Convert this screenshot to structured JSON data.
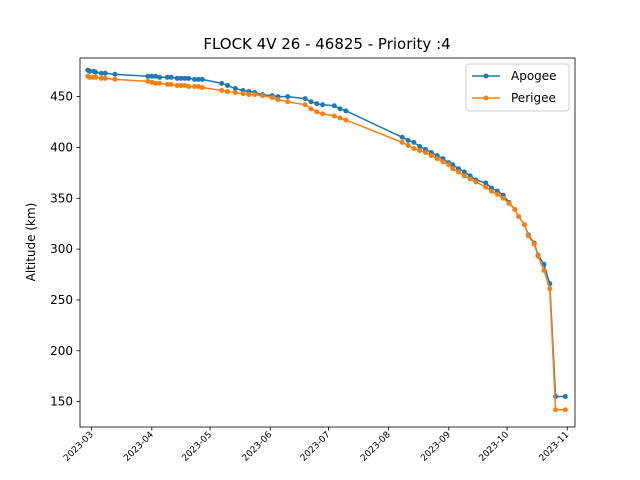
{
  "chart_data": {
    "type": "line",
    "title": "FLOCK 4V 26 - 46825 - Priority :4",
    "xlabel": "",
    "ylabel": "Altitude (km)",
    "x_ticks": [
      "2023-03",
      "2023-04",
      "2023-05",
      "2023-06",
      "2023-07",
      "2023-08",
      "2023-09",
      "2023-10",
      "2023-11"
    ],
    "y_ticks": [
      150,
      200,
      250,
      300,
      350,
      400,
      450
    ],
    "xlim": [
      "2023-02-23",
      "2023-11-05"
    ],
    "ylim": [
      125,
      488
    ],
    "grid": false,
    "legend_position": "top-right",
    "series": [
      {
        "name": "Apogee",
        "color": "#1f77b4",
        "x": [
          "2023-02-27",
          "2023-02-28",
          "2023-03-02",
          "2023-03-03",
          "2023-03-06",
          "2023-03-08",
          "2023-03-13",
          "2023-03-30",
          "2023-04-01",
          "2023-04-03",
          "2023-04-05",
          "2023-04-09",
          "2023-04-11",
          "2023-04-14",
          "2023-04-16",
          "2023-04-18",
          "2023-04-20",
          "2023-04-23",
          "2023-04-25",
          "2023-04-27",
          "2023-05-07",
          "2023-05-10",
          "2023-05-14",
          "2023-05-18",
          "2023-05-21",
          "2023-05-24",
          "2023-05-28",
          "2023-06-02",
          "2023-06-05",
          "2023-06-10",
          "2023-06-19",
          "2023-06-22",
          "2023-06-25",
          "2023-06-28",
          "2023-07-04",
          "2023-07-07",
          "2023-07-10",
          "2023-08-08",
          "2023-08-11",
          "2023-08-14",
          "2023-08-17",
          "2023-08-20",
          "2023-08-23",
          "2023-08-26",
          "2023-08-29",
          "2023-09-01",
          "2023-09-03",
          "2023-09-06",
          "2023-09-09",
          "2023-09-12",
          "2023-09-15",
          "2023-09-20",
          "2023-09-23",
          "2023-09-26",
          "2023-09-29",
          "2023-10-02",
          "2023-10-05",
          "2023-10-07",
          "2023-10-10",
          "2023-10-12",
          "2023-10-15",
          "2023-10-17",
          "2023-10-20",
          "2023-10-23",
          "2023-10-26",
          "2023-10-31"
        ],
        "y": [
          476,
          475,
          475,
          474,
          473,
          473,
          472,
          470,
          470,
          470,
          469,
          469,
          469,
          468,
          468,
          468,
          468,
          467,
          467,
          467,
          463,
          461,
          458,
          456,
          455,
          454,
          452,
          451,
          450,
          450,
          448,
          445,
          443,
          442,
          441,
          438,
          436,
          410,
          407,
          405,
          401,
          398,
          395,
          392,
          389,
          385,
          383,
          379,
          376,
          372,
          368,
          365,
          360,
          357,
          353,
          346,
          339,
          332,
          324,
          314,
          306,
          294,
          285,
          266,
          155,
          155
        ],
        "note": ""
      },
      {
        "name": "Perigee",
        "color": "#ff7f0e",
        "x": [
          "2023-02-27",
          "2023-02-28",
          "2023-03-02",
          "2023-03-03",
          "2023-03-06",
          "2023-03-08",
          "2023-03-13",
          "2023-03-30",
          "2023-04-01",
          "2023-04-03",
          "2023-04-05",
          "2023-04-09",
          "2023-04-11",
          "2023-04-14",
          "2023-04-16",
          "2023-04-18",
          "2023-04-20",
          "2023-04-23",
          "2023-04-25",
          "2023-04-27",
          "2023-05-07",
          "2023-05-10",
          "2023-05-14",
          "2023-05-18",
          "2023-05-21",
          "2023-05-24",
          "2023-05-28",
          "2023-06-02",
          "2023-06-05",
          "2023-06-10",
          "2023-06-19",
          "2023-06-22",
          "2023-06-25",
          "2023-06-28",
          "2023-07-04",
          "2023-07-07",
          "2023-07-10",
          "2023-08-08",
          "2023-08-11",
          "2023-08-14",
          "2023-08-17",
          "2023-08-20",
          "2023-08-23",
          "2023-08-26",
          "2023-08-29",
          "2023-09-01",
          "2023-09-03",
          "2023-09-06",
          "2023-09-09",
          "2023-09-12",
          "2023-09-15",
          "2023-09-20",
          "2023-09-23",
          "2023-09-26",
          "2023-09-29",
          "2023-10-02",
          "2023-10-05",
          "2023-10-07",
          "2023-10-10",
          "2023-10-12",
          "2023-10-15",
          "2023-10-17",
          "2023-10-20",
          "2023-10-23",
          "2023-10-26",
          "2023-10-31"
        ],
        "y": [
          470,
          469,
          469,
          469,
          468,
          468,
          467,
          465,
          464,
          463,
          463,
          462,
          462,
          461,
          461,
          461,
          460,
          460,
          460,
          459,
          456,
          455,
          454,
          453,
          452,
          452,
          451,
          449,
          447,
          445,
          442,
          438,
          435,
          433,
          431,
          429,
          427,
          405,
          402,
          399,
          397,
          395,
          392,
          389,
          386,
          383,
          379,
          376,
          372,
          369,
          366,
          361,
          357,
          354,
          350,
          345,
          339,
          332,
          324,
          313,
          305,
          293,
          279,
          261,
          142,
          142
        ],
        "note": ""
      }
    ]
  }
}
